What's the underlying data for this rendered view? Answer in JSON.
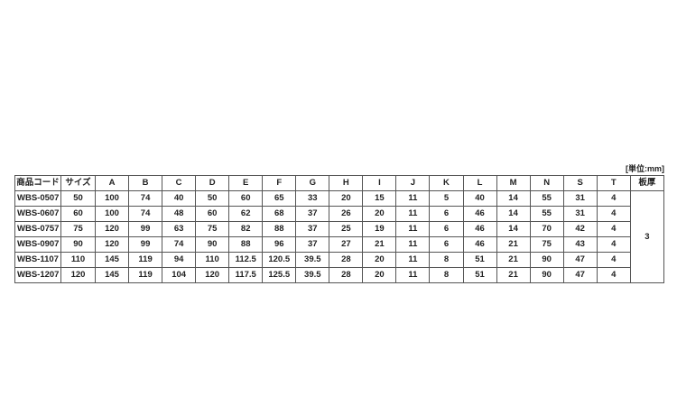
{
  "unit_label": "[単位:mm]",
  "headers": [
    "商品コード",
    "サイズ",
    "A",
    "B",
    "C",
    "D",
    "E",
    "F",
    "G",
    "H",
    "I",
    "J",
    "K",
    "L",
    "M",
    "N",
    "S",
    "T",
    "板厚"
  ],
  "rows": [
    [
      "WBS-0507",
      "50",
      "100",
      "74",
      "40",
      "50",
      "60",
      "65",
      "33",
      "20",
      "15",
      "11",
      "5",
      "40",
      "14",
      "55",
      "31",
      "4"
    ],
    [
      "WBS-0607",
      "60",
      "100",
      "74",
      "48",
      "60",
      "62",
      "68",
      "37",
      "26",
      "20",
      "11",
      "6",
      "46",
      "14",
      "55",
      "31",
      "4"
    ],
    [
      "WBS-0757",
      "75",
      "120",
      "99",
      "63",
      "75",
      "82",
      "88",
      "37",
      "25",
      "19",
      "11",
      "6",
      "46",
      "14",
      "70",
      "42",
      "4"
    ],
    [
      "WBS-0907",
      "90",
      "120",
      "99",
      "74",
      "90",
      "88",
      "96",
      "37",
      "27",
      "21",
      "11",
      "6",
      "46",
      "21",
      "75",
      "43",
      "4"
    ],
    [
      "WBS-1107",
      "110",
      "145",
      "119",
      "94",
      "110",
      "112.5",
      "120.5",
      "39.5",
      "28",
      "20",
      "11",
      "8",
      "51",
      "21",
      "90",
      "47",
      "4"
    ],
    [
      "WBS-1207",
      "120",
      "145",
      "119",
      "104",
      "120",
      "117.5",
      "125.5",
      "39.5",
      "28",
      "20",
      "11",
      "8",
      "51",
      "21",
      "90",
      "47",
      "4"
    ]
  ],
  "plate_thickness": "3"
}
